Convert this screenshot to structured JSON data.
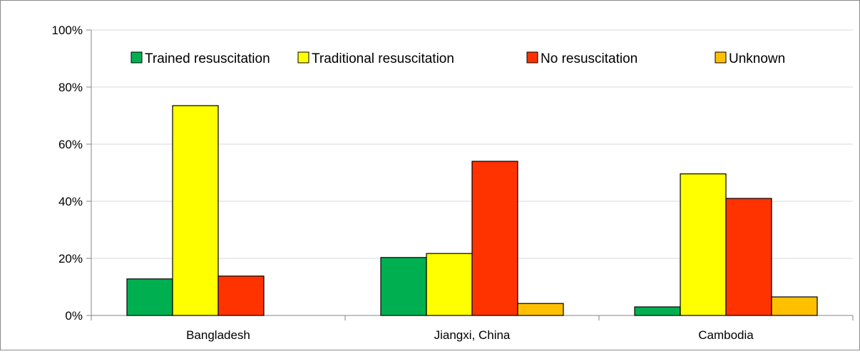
{
  "chart_data": {
    "type": "bar",
    "title": "",
    "xlabel": "",
    "ylabel": "",
    "categories": [
      "Bangladesh",
      "Jiangxi, China",
      "Cambodia"
    ],
    "series": [
      {
        "name": "Trained resuscitation",
        "color": "#00B050",
        "values": [
          12.8,
          20.3,
          3.0
        ]
      },
      {
        "name": "Traditional resuscitation",
        "color": "#FFFF00",
        "values": [
          73.5,
          21.7,
          49.6
        ]
      },
      {
        "name": "No resuscitation",
        "color": "#FF3300",
        "values": [
          13.8,
          54.0,
          41.0
        ]
      },
      {
        "name": "Unknown",
        "color": "#FFC000",
        "values": [
          0,
          4.2,
          6.5
        ]
      }
    ],
    "ylim": [
      0,
      100
    ],
    "yticks": [
      0,
      20,
      40,
      60,
      80,
      100
    ],
    "ytick_labels": [
      "0%",
      "20%",
      "40%",
      "60%",
      "80%",
      "100%"
    ],
    "grid": true,
    "legend_position": "top"
  }
}
